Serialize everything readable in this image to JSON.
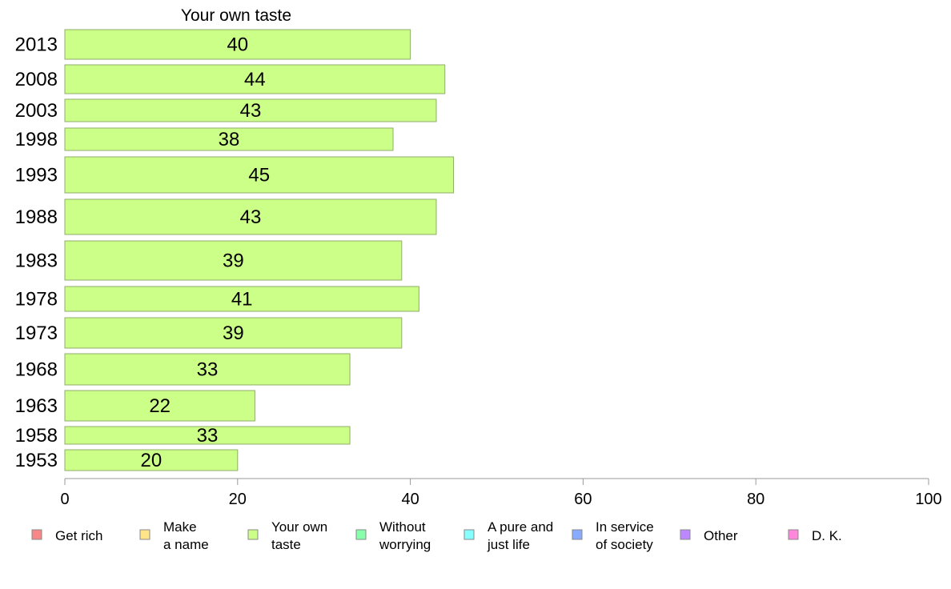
{
  "chart_data": {
    "type": "bar",
    "orientation": "horizontal",
    "title": "Your own taste",
    "categories": [
      "2013",
      "2008",
      "2003",
      "1998",
      "1993",
      "1988",
      "1983",
      "1978",
      "1973",
      "1968",
      "1963",
      "1958",
      "1953"
    ],
    "values": [
      40,
      44,
      43,
      38,
      45,
      43,
      39,
      41,
      39,
      33,
      22,
      33,
      20
    ],
    "data_labels": [
      "40",
      "44",
      "43",
      "38",
      "45",
      "43",
      "39",
      "41",
      "39",
      "33",
      "22",
      "33",
      "20"
    ],
    "xlim": [
      0,
      100
    ],
    "x_ticks": [
      "0",
      "20",
      "40",
      "60",
      "80",
      "100"
    ],
    "grid": false,
    "bar_color": "#ccff88",
    "bar_edge_color": "#8fae6a",
    "legend_position": "bottom",
    "legend": [
      {
        "label": "Get rich",
        "color": "#f88888"
      },
      {
        "label": "Make\na name",
        "color": "#ffe488"
      },
      {
        "label": "Your own\ntaste",
        "color": "#ccff88"
      },
      {
        "label": "Without\nworrying",
        "color": "#88ffaa"
      },
      {
        "label": "A pure and\njust life",
        "color": "#88ffff"
      },
      {
        "label": "In service\nof society",
        "color": "#88aaff"
      },
      {
        "label": "Other",
        "color": "#bb88ff"
      },
      {
        "label": "D. K.",
        "color": "#ff88dd"
      }
    ]
  }
}
